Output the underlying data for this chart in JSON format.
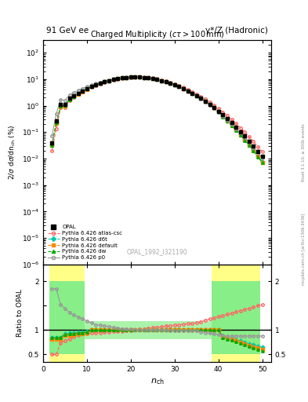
{
  "title_left": "91 GeV ee",
  "title_right": "γ*/Z (Hadronic)",
  "plot_title": "Charged Multiplicity",
  "plot_subtitle": "(cτ > 100mm)",
  "ylabel_main": "2/σ dσ/dn_{ch} (%)",
  "ylabel_ratio": "Ratio to OPAL",
  "xlabel": "n_{ch}",
  "watermark": "OPAL_1992_I321190",
  "side_text": "mcplots.cern.ch [arXiv:1306.3436]",
  "side_text2": "Rivet 3.1.10, ≥ 300k events",
  "colors": {
    "opal": "#000000",
    "atlas_csc": "#ff6666",
    "d6t": "#00ccaa",
    "default": "#ff8800",
    "dw": "#00aa00",
    "p0": "#999999"
  },
  "yellow_color": "#ffff88",
  "green_color": "#88ee88",
  "ratio_ylim": [
    0.35,
    2.35
  ],
  "main_ylim_lo": 1e-06,
  "main_ylim_hi": 300,
  "xlim": [
    0,
    52
  ],
  "legend_entries": [
    "OPAL",
    "Pythia 6.426 atlas-csc",
    "Pythia 6.426 d6t",
    "Pythia 6.426 default",
    "Pythia 6.426 dw",
    "Pythia 6.426 p0"
  ]
}
